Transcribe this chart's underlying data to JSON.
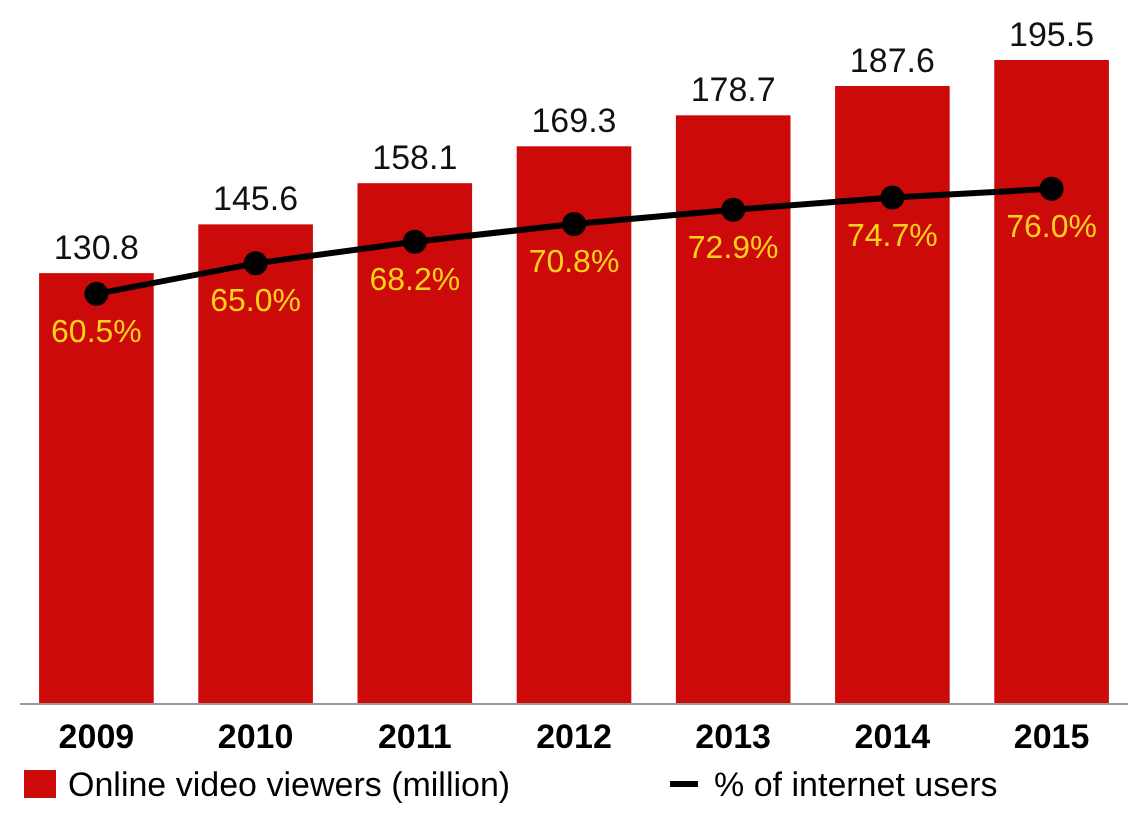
{
  "chart_data": {
    "type": "bar",
    "categories": [
      "2009",
      "2010",
      "2011",
      "2012",
      "2013",
      "2014",
      "2015"
    ],
    "series": [
      {
        "name": "Online video viewers (million)",
        "color": "#cc0a0a",
        "values": [
          130.8,
          145.6,
          158.1,
          169.3,
          178.7,
          187.6,
          195.5
        ],
        "value_labels": [
          "130.8",
          "145.6",
          "158.1",
          "169.3",
          "178.7",
          "187.6",
          "195.5"
        ]
      },
      {
        "name": "% of internet users",
        "type": "line",
        "axis": "y2",
        "color": "#000000",
        "values": [
          60.5,
          65.0,
          68.2,
          70.8,
          72.9,
          74.7,
          76.0
        ],
        "value_labels": [
          "60.5%",
          "65.0%",
          "68.2%",
          "70.8%",
          "72.9%",
          "74.7%",
          "76.0%"
        ]
      }
    ],
    "marker": "circle",
    "legend": "bottom"
  }
}
